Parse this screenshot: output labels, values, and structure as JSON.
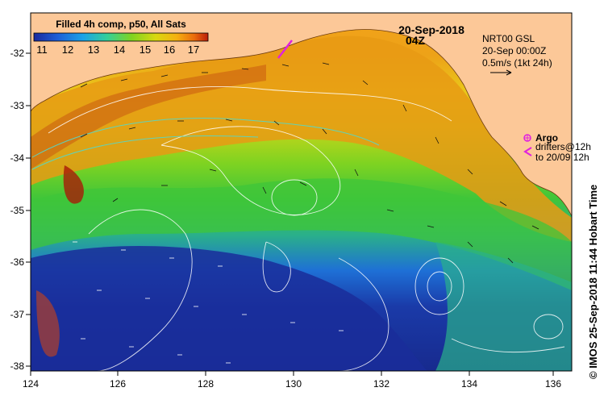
{
  "product": {
    "title": "Filled 4h comp, p50, All Sats",
    "date": "20-Sep-2018",
    "time": "04Z"
  },
  "colorbar": {
    "labels": [
      "11",
      "12",
      "13",
      "14",
      "15",
      "16",
      "17"
    ],
    "min": 10.5,
    "max": 17.5,
    "colors": [
      "#1a2a9e",
      "#1f60d8",
      "#1aa2e8",
      "#34cf9a",
      "#7fd321",
      "#d9d80f",
      "#f5b010",
      "#ea6c0c",
      "#bb1d0a"
    ]
  },
  "reference": {
    "line1": "NRT00 GSL",
    "line2": "20-Sep 00:00Z",
    "line3": "0.5m/s (1kt 24h)"
  },
  "legend": {
    "argo": "Argo",
    "drifters_line1": "drifters@12h",
    "drifters_line2": "to 20/09 12h",
    "argo_color": "#e020e0",
    "drifter_color": "#e020e0"
  },
  "axes": {
    "x_ticks": [
      "124",
      "126",
      "128",
      "130",
      "132",
      "134",
      "136"
    ],
    "y_ticks": [
      "-32",
      "-33",
      "-34",
      "-35",
      "-36",
      "-37",
      "-38"
    ],
    "lon_range": [
      124,
      136.5
    ],
    "lat_range": [
      -38.1,
      -31.4
    ]
  },
  "credit": "© IMOS 25-Sep-2018 11:44 Hobart Time",
  "colors": {
    "land": "#fcc898",
    "frame": "#000000"
  }
}
